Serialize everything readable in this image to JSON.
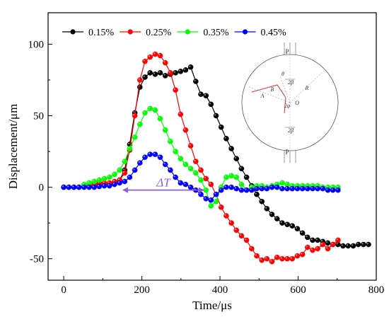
{
  "chart_data": {
    "type": "line",
    "title": "",
    "xlabel": "Time/μs",
    "ylabel": "Displacement/μm",
    "xlim": [
      -40,
      800
    ],
    "ylim": [
      -65,
      122
    ],
    "xticks": [
      0,
      200,
      400,
      600,
      800
    ],
    "yticks": [
      -50,
      0,
      50,
      100
    ],
    "legend_position": "top-left",
    "grid": false,
    "series": [
      {
        "name": "0.15%",
        "color": "#000000",
        "x": [
          0,
          13,
          26,
          39,
          52,
          65,
          78,
          91,
          104,
          117,
          130,
          143,
          156,
          169,
          182,
          195,
          208,
          221,
          234,
          247,
          260,
          273,
          286,
          299,
          312,
          325,
          338,
          351,
          364,
          377,
          390,
          403,
          416,
          429,
          442,
          455,
          468,
          481,
          494,
          507,
          520,
          533,
          546,
          559,
          572,
          585,
          598,
          611,
          624,
          637,
          650,
          663,
          676,
          689,
          702,
          715,
          728,
          741,
          754,
          767,
          780
        ],
        "y": [
          0,
          0,
          0,
          0,
          0.5,
          0.5,
          1,
          1,
          1.5,
          2,
          3,
          5,
          12,
          30,
          52,
          70,
          77,
          80,
          79,
          80,
          78,
          79,
          80,
          81,
          82,
          84,
          74,
          65,
          64,
          58,
          50,
          42,
          34,
          27,
          20,
          13,
          7,
          1,
          -5,
          -10,
          -15,
          -19,
          -22,
          -25,
          -26,
          -27,
          -29,
          -32,
          -35,
          -37,
          -37,
          -38,
          -39,
          -40,
          -40,
          -41,
          -41,
          -41,
          -40,
          -40,
          -40
        ]
      },
      {
        "name": "0.25%",
        "color": "#ff0000",
        "x": [
          0,
          13,
          26,
          39,
          52,
          65,
          78,
          91,
          104,
          117,
          130,
          143,
          156,
          169,
          182,
          195,
          208,
          221,
          234,
          247,
          260,
          273,
          286,
          299,
          312,
          325,
          338,
          351,
          364,
          377,
          390,
          403,
          416,
          429,
          442,
          455,
          468,
          481,
          494,
          507,
          520,
          533,
          546,
          559,
          572,
          585,
          598,
          611,
          624,
          637,
          650,
          663,
          676,
          689,
          702
        ],
        "y": [
          0,
          0,
          0,
          0,
          0.5,
          1,
          2,
          3,
          3,
          3,
          4,
          5,
          10,
          26,
          50,
          75,
          88,
          91,
          93,
          92,
          87,
          80,
          68,
          51,
          40,
          29,
          18,
          12,
          6,
          2,
          -5,
          -14,
          -20,
          -25,
          -30,
          -34,
          -37,
          -43,
          -48,
          -51,
          -50,
          -52,
          -49,
          -50,
          -50,
          -50,
          -48,
          -47,
          -42,
          -44,
          -43,
          -40,
          -43,
          -40,
          -37
        ]
      },
      {
        "name": "0.35%",
        "color": "#00ff00",
        "x": [
          0,
          13,
          26,
          39,
          52,
          65,
          78,
          91,
          104,
          117,
          130,
          143,
          156,
          169,
          182,
          195,
          208,
          221,
          234,
          247,
          260,
          273,
          286,
          299,
          312,
          325,
          338,
          351,
          364,
          377,
          390,
          403,
          416,
          429,
          442,
          455,
          468,
          481,
          494,
          507,
          520,
          533,
          546,
          559,
          572,
          585,
          598,
          611,
          624,
          637,
          650,
          663,
          676,
          689,
          702
        ],
        "y": [
          0,
          0,
          0,
          0,
          2,
          3,
          4,
          5,
          6,
          7,
          9,
          12,
          18,
          27,
          35,
          44,
          52,
          55,
          54,
          48,
          40,
          32,
          25,
          20,
          16,
          13,
          10,
          5,
          -2,
          -13,
          -10,
          0,
          7,
          8,
          7,
          2,
          -2,
          0,
          1,
          1,
          0,
          1,
          2,
          3,
          2,
          1,
          1,
          1,
          1,
          1,
          1,
          0,
          0,
          0,
          0
        ]
      },
      {
        "name": "0.45%",
        "color": "#0000ff",
        "x": [
          0,
          13,
          26,
          39,
          52,
          65,
          78,
          91,
          104,
          117,
          130,
          143,
          156,
          169,
          182,
          195,
          208,
          221,
          234,
          247,
          260,
          273,
          286,
          299,
          312,
          325,
          338,
          351,
          364,
          377,
          390,
          403,
          416,
          429,
          442,
          455,
          468,
          481,
          494,
          507,
          520,
          533,
          546,
          559,
          572,
          585,
          598,
          611,
          624,
          637,
          650,
          663,
          676,
          689,
          702
        ],
        "y": [
          0,
          0,
          0,
          0,
          0,
          0,
          0,
          0.5,
          1,
          1,
          2,
          3,
          4,
          7,
          12,
          17,
          21,
          23,
          23,
          21,
          16,
          12,
          7,
          3,
          2,
          0,
          -2,
          -5,
          -8,
          -9,
          -5,
          -2,
          0,
          0,
          -1,
          -2,
          -2,
          -2,
          -1,
          -1,
          -1,
          0,
          0,
          -1,
          -1,
          -1,
          -1,
          -1,
          -1,
          -1,
          -1,
          -1,
          -2,
          -2,
          -2
        ]
      }
    ],
    "annotations": [
      {
        "text": "ΔT",
        "x_from": 150,
        "x_to": 360,
        "y": -2
      }
    ],
    "inset": {
      "labels": [
        "P",
        "P",
        "θ",
        "2β",
        "2β",
        "A",
        "B",
        "R",
        "O",
        "2φ"
      ]
    }
  }
}
